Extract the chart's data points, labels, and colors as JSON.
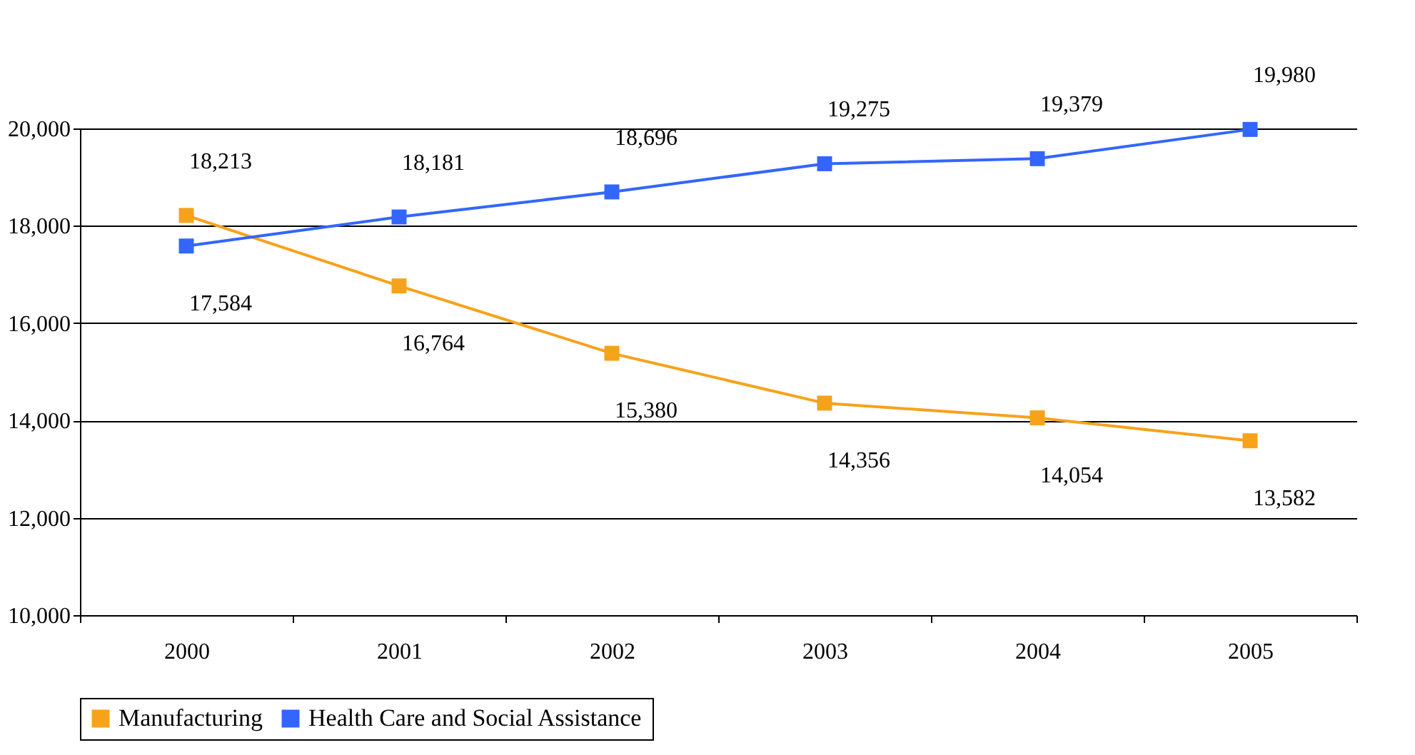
{
  "chart_data": {
    "type": "line",
    "categories": [
      "2000",
      "2001",
      "2002",
      "2003",
      "2004",
      "2005"
    ],
    "series": [
      {
        "name": "Manufacturing",
        "color": "#f7a21b",
        "values": [
          18213,
          16764,
          15380,
          14356,
          14054,
          13582
        ],
        "value_labels": [
          "18,213",
          "16,764",
          "15,380",
          "14,356",
          "14,054",
          "13,582"
        ]
      },
      {
        "name": "Health Care and Social Assistance",
        "color": "#3366ff",
        "values": [
          17584,
          18181,
          18696,
          19275,
          19379,
          19980
        ],
        "value_labels": [
          "17,584",
          "18,181",
          "18,696",
          "19,275",
          "19,379",
          "19,980"
        ]
      }
    ],
    "ylim": [
      10000,
      20000
    ],
    "yticks": [
      {
        "value": 10000,
        "label": "10,000"
      },
      {
        "value": 12000,
        "label": "12,000"
      },
      {
        "value": 14000,
        "label": "14,000"
      },
      {
        "value": 16000,
        "label": "16,000"
      },
      {
        "value": 18000,
        "label": "18,000"
      },
      {
        "value": 20000,
        "label": "20,000"
      }
    ],
    "grid": "y",
    "legend": "bottom",
    "marker": "square",
    "line_style": "solid"
  }
}
